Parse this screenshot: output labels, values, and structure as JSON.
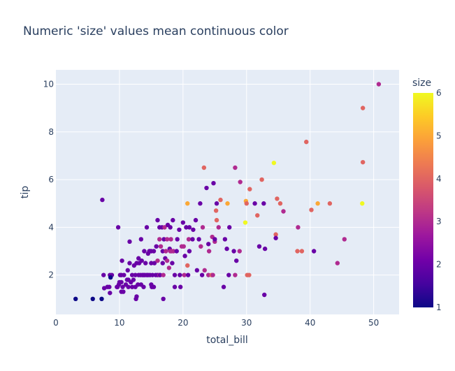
{
  "chart_data": {
    "type": "scatter",
    "title": "Numeric 'size' values mean continuous color",
    "xlabel": "total_bill",
    "ylabel": "tip",
    "xlim": [
      0,
      54
    ],
    "ylim": [
      0.35,
      10.6
    ],
    "x_ticks": [
      0,
      10,
      20,
      30,
      40,
      50
    ],
    "y_ticks": [
      2,
      4,
      6,
      8,
      10
    ],
    "grid": true,
    "colorbar": {
      "title": "size",
      "range": [
        1,
        6
      ],
      "ticks": [
        1,
        2,
        3,
        4,
        5,
        6
      ],
      "colorscale": [
        "#0d0887",
        "#46039f",
        "#7201a8",
        "#9c179e",
        "#bd3786",
        "#d8576b",
        "#ed7953",
        "#fb9f3a",
        "#fdca26",
        "#f0f921"
      ]
    },
    "points": [
      [
        3.1,
        1.0,
        1
      ],
      [
        5.8,
        1.0,
        1
      ],
      [
        7.2,
        1.0,
        1
      ],
      [
        7.3,
        5.15,
        2
      ],
      [
        7.5,
        2.0,
        2
      ],
      [
        7.6,
        1.45,
        2
      ],
      [
        8.1,
        1.5,
        2
      ],
      [
        8.4,
        1.5,
        2
      ],
      [
        8.5,
        1.25,
        2
      ],
      [
        8.5,
        2.0,
        2
      ],
      [
        8.8,
        2.0,
        2
      ],
      [
        8.6,
        1.9,
        1
      ],
      [
        9.6,
        1.5,
        2
      ],
      [
        9.7,
        1.5,
        2
      ],
      [
        9.8,
        4.0,
        2
      ],
      [
        9.9,
        1.6,
        2
      ],
      [
        10.0,
        1.7,
        2
      ],
      [
        10.1,
        2.0,
        2
      ],
      [
        10.3,
        1.3,
        2
      ],
      [
        10.3,
        1.7,
        2
      ],
      [
        10.3,
        2.0,
        2
      ],
      [
        10.4,
        2.6,
        2
      ],
      [
        10.5,
        1.5,
        2
      ],
      [
        10.6,
        1.3,
        2
      ],
      [
        10.7,
        2.0,
        2
      ],
      [
        11.0,
        1.6,
        2
      ],
      [
        11.2,
        1.8,
        2
      ],
      [
        11.3,
        2.2,
        2
      ],
      [
        11.4,
        1.5,
        2
      ],
      [
        11.4,
        1.8,
        2
      ],
      [
        11.6,
        2.5,
        2
      ],
      [
        11.6,
        3.4,
        2
      ],
      [
        11.8,
        1.7,
        2
      ],
      [
        12.0,
        1.5,
        2
      ],
      [
        12.0,
        2.0,
        2
      ],
      [
        12.2,
        1.8,
        2
      ],
      [
        12.3,
        2.4,
        2
      ],
      [
        12.5,
        1.5,
        2
      ],
      [
        12.5,
        2.0,
        2
      ],
      [
        12.6,
        1.0,
        2
      ],
      [
        12.7,
        1.1,
        2
      ],
      [
        12.7,
        2.5,
        2
      ],
      [
        12.9,
        1.6,
        2
      ],
      [
        13.0,
        2.0,
        2
      ],
      [
        13.0,
        2.7,
        2
      ],
      [
        13.1,
        2.5,
        2
      ],
      [
        13.3,
        2.0,
        2
      ],
      [
        13.4,
        3.5,
        2
      ],
      [
        13.4,
        1.6,
        2
      ],
      [
        13.5,
        2.6,
        2
      ],
      [
        13.6,
        2.0,
        2
      ],
      [
        13.8,
        1.5,
        2
      ],
      [
        13.8,
        2.0,
        2
      ],
      [
        13.9,
        3.0,
        2
      ],
      [
        14.0,
        2.0,
        2
      ],
      [
        14.1,
        2.5,
        2
      ],
      [
        14.3,
        2.0,
        2
      ],
      [
        14.3,
        4.0,
        2
      ],
      [
        14.5,
        2.0,
        2
      ],
      [
        14.5,
        2.9,
        2
      ],
      [
        14.7,
        3.0,
        2
      ],
      [
        14.8,
        2.0,
        2
      ],
      [
        14.8,
        3.0,
        2
      ],
      [
        15.0,
        1.6,
        2
      ],
      [
        15.0,
        3.0,
        2
      ],
      [
        15.0,
        2.5,
        2
      ],
      [
        15.1,
        1.5,
        2
      ],
      [
        15.2,
        2.0,
        2
      ],
      [
        15.4,
        1.5,
        2
      ],
      [
        15.4,
        3.0,
        2
      ],
      [
        15.5,
        2.5,
        2
      ],
      [
        15.7,
        2.0,
        2
      ],
      [
        15.8,
        3.2,
        2
      ],
      [
        16.0,
        2.0,
        2
      ],
      [
        16.0,
        2.6,
        3
      ],
      [
        16.0,
        4.3,
        2
      ],
      [
        16.3,
        2.0,
        3
      ],
      [
        16.3,
        3.5,
        3
      ],
      [
        16.3,
        4.0,
        2
      ],
      [
        16.4,
        2.0,
        2
      ],
      [
        16.5,
        3.2,
        3
      ],
      [
        16.7,
        4.0,
        2
      ],
      [
        16.8,
        2.5,
        2
      ],
      [
        16.8,
        3.0,
        2
      ],
      [
        16.9,
        2.0,
        3
      ],
      [
        16.9,
        1.0,
        2
      ],
      [
        17.0,
        3.5,
        2
      ],
      [
        17.1,
        4.0,
        3
      ],
      [
        17.2,
        2.7,
        2
      ],
      [
        17.3,
        3.0,
        3
      ],
      [
        17.5,
        2.6,
        3
      ],
      [
        17.5,
        3.5,
        3
      ],
      [
        17.6,
        4.1,
        2
      ],
      [
        17.8,
        2.3,
        3
      ],
      [
        17.9,
        3.1,
        2
      ],
      [
        18.0,
        3.0,
        3
      ],
      [
        18.0,
        4.0,
        2
      ],
      [
        18.1,
        3.5,
        3
      ],
      [
        18.2,
        3.0,
        3
      ],
      [
        18.3,
        2.5,
        2
      ],
      [
        18.4,
        4.3,
        2
      ],
      [
        18.5,
        3.0,
        3
      ],
      [
        18.7,
        2.0,
        2
      ],
      [
        18.7,
        1.5,
        2
      ],
      [
        19.0,
        3.0,
        2
      ],
      [
        19.1,
        3.5,
        2
      ],
      [
        19.4,
        3.9,
        2
      ],
      [
        19.5,
        2.0,
        2
      ],
      [
        19.6,
        1.5,
        2
      ],
      [
        19.8,
        3.2,
        3
      ],
      [
        20.0,
        4.2,
        2
      ],
      [
        20.1,
        3.2,
        3
      ],
      [
        20.2,
        2.0,
        3
      ],
      [
        20.3,
        2.8,
        2
      ],
      [
        20.5,
        4.0,
        2
      ],
      [
        20.7,
        5.0,
        5
      ],
      [
        20.7,
        2.4,
        4
      ],
      [
        20.8,
        2.0,
        2
      ],
      [
        20.9,
        3.5,
        3
      ],
      [
        21.0,
        3.0,
        2
      ],
      [
        21.0,
        4.0,
        2
      ],
      [
        21.5,
        3.5,
        2
      ],
      [
        21.6,
        3.9,
        2
      ],
      [
        22.0,
        4.3,
        2
      ],
      [
        22.2,
        2.2,
        2
      ],
      [
        22.5,
        3.5,
        2
      ],
      [
        22.7,
        5.0,
        2
      ],
      [
        22.8,
        3.2,
        3
      ],
      [
        23.0,
        2.0,
        2
      ],
      [
        23.1,
        4.0,
        3
      ],
      [
        23.3,
        6.5,
        4
      ],
      [
        23.4,
        2.2,
        3
      ],
      [
        23.7,
        5.65,
        2
      ],
      [
        24.0,
        2.0,
        3
      ],
      [
        24.0,
        3.3,
        2
      ],
      [
        24.1,
        3.0,
        3
      ],
      [
        24.5,
        2.0,
        4
      ],
      [
        24.6,
        3.6,
        3
      ],
      [
        24.7,
        2.0,
        3
      ],
      [
        24.8,
        5.85,
        2
      ],
      [
        25.0,
        3.4,
        3
      ],
      [
        25.0,
        3.5,
        2
      ],
      [
        25.2,
        4.7,
        4
      ],
      [
        25.3,
        4.3,
        4
      ],
      [
        25.3,
        5.0,
        2
      ],
      [
        25.6,
        4.0,
        3
      ],
      [
        25.9,
        5.15,
        4
      ],
      [
        26.4,
        1.5,
        2
      ],
      [
        26.6,
        3.5,
        2
      ],
      [
        26.9,
        3.1,
        2
      ],
      [
        27.0,
        5.0,
        5
      ],
      [
        27.2,
        2.0,
        2
      ],
      [
        27.3,
        4.0,
        2
      ],
      [
        28.0,
        3.0,
        2
      ],
      [
        28.2,
        2.0,
        3
      ],
      [
        28.2,
        6.5,
        3
      ],
      [
        28.4,
        2.6,
        2
      ],
      [
        28.9,
        3.0,
        3
      ],
      [
        29.0,
        5.9,
        3
      ],
      [
        29.8,
        4.2,
        6
      ],
      [
        29.9,
        5.1,
        5
      ],
      [
        30.0,
        5.0,
        4
      ],
      [
        30.1,
        2.0,
        4
      ],
      [
        30.4,
        2.0,
        4
      ],
      [
        30.5,
        5.6,
        4
      ],
      [
        31.3,
        5.0,
        2
      ],
      [
        31.7,
        4.5,
        4
      ],
      [
        32.0,
        3.2,
        2
      ],
      [
        32.4,
        6.0,
        4
      ],
      [
        32.7,
        5.0,
        2
      ],
      [
        32.8,
        1.17,
        2
      ],
      [
        32.9,
        3.1,
        2
      ],
      [
        34.3,
        6.7,
        6
      ],
      [
        34.6,
        3.7,
        4
      ],
      [
        34.6,
        3.55,
        2
      ],
      [
        34.8,
        5.2,
        4
      ],
      [
        35.3,
        5.0,
        4
      ],
      [
        35.8,
        4.67,
        3
      ],
      [
        38.0,
        3.0,
        4
      ],
      [
        38.1,
        4.0,
        3
      ],
      [
        38.7,
        3.0,
        4
      ],
      [
        39.4,
        7.58,
        4
      ],
      [
        40.2,
        4.73,
        4
      ],
      [
        40.6,
        3.0,
        2
      ],
      [
        41.2,
        5.0,
        5
      ],
      [
        43.1,
        5.0,
        4
      ],
      [
        44.3,
        2.5,
        3
      ],
      [
        45.4,
        3.5,
        3
      ],
      [
        48.2,
        5.0,
        6
      ],
      [
        48.3,
        9.0,
        4
      ],
      [
        48.3,
        6.73,
        4
      ],
      [
        50.8,
        10.0,
        3
      ]
    ]
  }
}
